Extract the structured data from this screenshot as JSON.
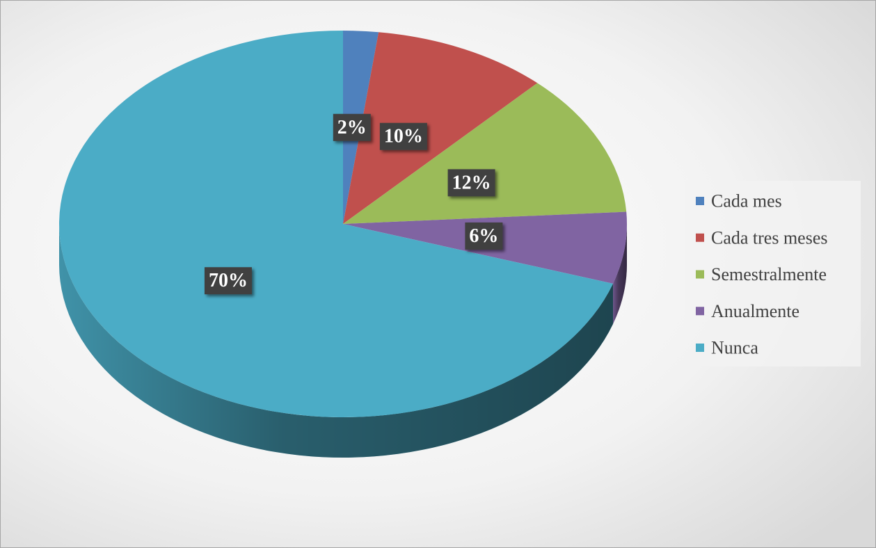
{
  "chart_data": {
    "type": "pie",
    "categories": [
      "Cada mes",
      "Cada tres meses",
      "Semestralmente",
      "Anualmente",
      "Nunca"
    ],
    "values": [
      2,
      10,
      12,
      6,
      70
    ],
    "value_labels": [
      "2%",
      "10%",
      "12%",
      "6%",
      "70%"
    ],
    "colors": [
      "#4f81bd",
      "#c0504d",
      "#9bbb59",
      "#8064a2",
      "#4bacc6"
    ],
    "legend": "right"
  }
}
